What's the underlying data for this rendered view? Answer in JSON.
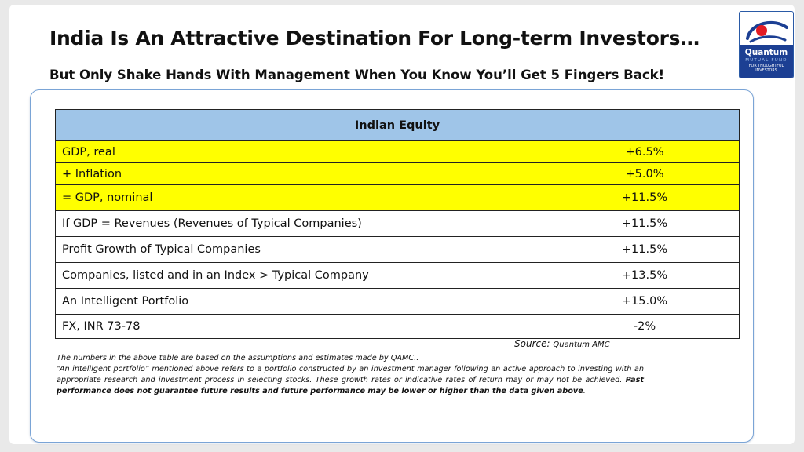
{
  "header": {
    "title": "India Is An Attractive Destination For Long-term Investors…",
    "subtitle": "But Only Shake Hands With Management When You Know You’ll Get 5 Fingers Back!"
  },
  "logo": {
    "name": "Quantum",
    "sub": "MUTUAL FUND",
    "tag_line1": "FOR THOUGHTFUL",
    "tag_line2": "INVESTORS",
    "colors": {
      "band": "#1c3f93",
      "dot": "#e31b23"
    }
  },
  "table": {
    "header": "Indian Equity",
    "header_color": "#9fc5e8",
    "highlight_color": "#ffff00",
    "rows": [
      {
        "label": "GDP, real",
        "value": "+6.5%"
      },
      {
        "label": "+ Inflation",
        "value": "+5.0%"
      },
      {
        "label": "= GDP, nominal",
        "value": "+11.5%"
      },
      {
        "label": "If GDP = Revenues (Revenues of Typical Companies)",
        "value": "+11.5%"
      },
      {
        "label": "Profit Growth of Typical Companies",
        "value": "+11.5%"
      },
      {
        "label": "Companies, listed and in an Index > Typical Company",
        "value": "+13.5%"
      },
      {
        "label": "An Intelligent Portfolio",
        "value": "+15.0%"
      },
      {
        "label": "FX, INR 73-78",
        "value": "-2%"
      }
    ]
  },
  "source": {
    "label": "Source:",
    "value": "Quantum AMC"
  },
  "notes": {
    "line1": "The numbers in the above table are based on the assumptions and estimates made by QAMC..",
    "line2": "“An intelligent portfolio” mentioned above refers to a portfolio constructed by an investment manager following an active approach to investing with an appropriate research and investment process in selecting stocks. These growth rates or indicative rates of return may or may not be achieved.",
    "line2_bold": "Past performance does not guarantee future results and future performance may be lower or higher than the data given above",
    "line2_end": "."
  }
}
